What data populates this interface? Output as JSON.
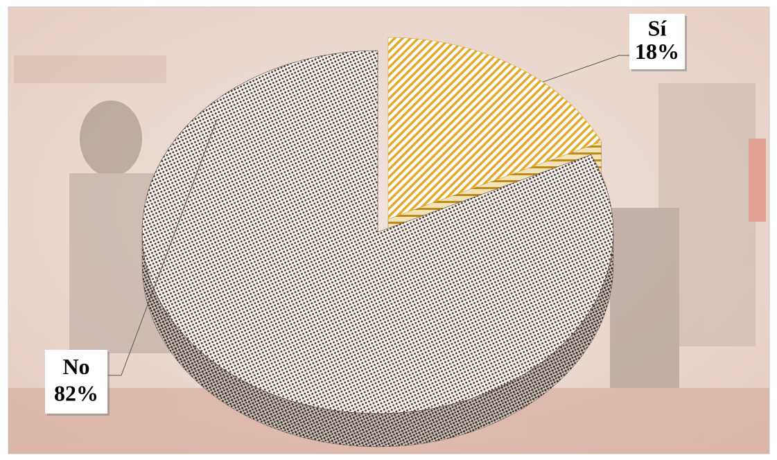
{
  "chart_data": {
    "type": "pie",
    "categories": [
      "Sí",
      "No"
    ],
    "values": [
      18,
      82
    ],
    "value_labels": [
      "18%",
      "82%"
    ],
    "colors": [
      "#e3a92a",
      "#4a3a34"
    ],
    "exploded": [
      true,
      false
    ]
  }
}
